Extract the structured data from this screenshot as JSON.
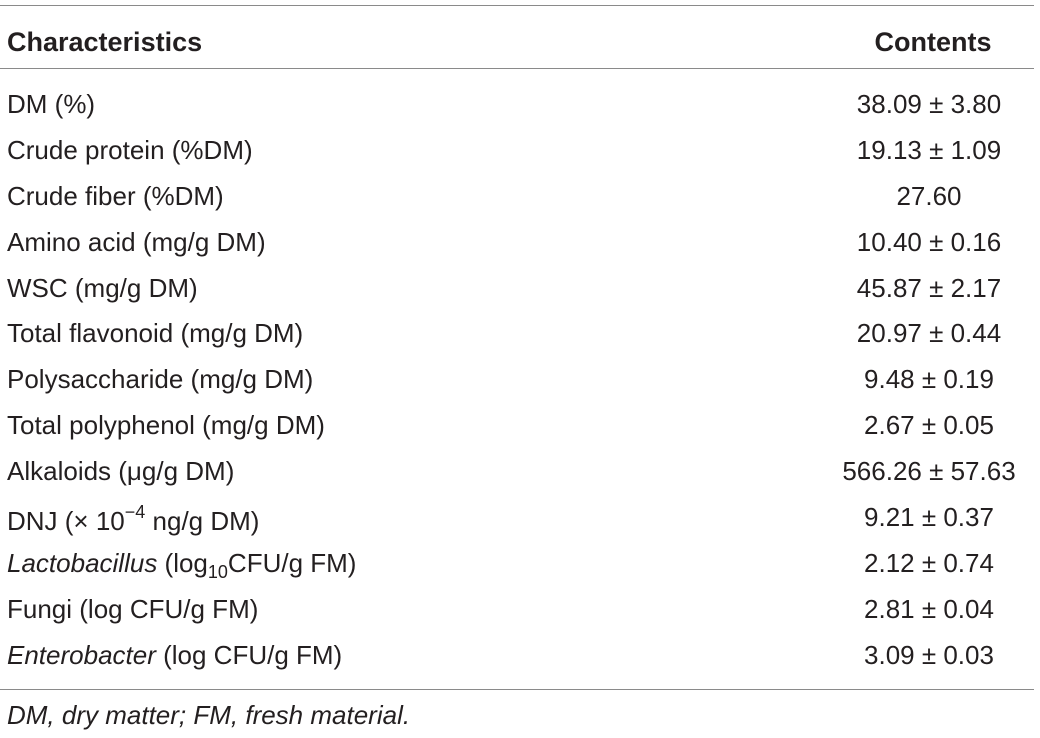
{
  "table": {
    "headers": {
      "characteristics": "Characteristics",
      "contents": "Contents"
    },
    "rows": [
      {
        "label": "DM (%)",
        "value": "38.09 ± 3.80"
      },
      {
        "label": "Crude protein (%DM)",
        "value": "19.13 ± 1.09"
      },
      {
        "label": "Crude fiber (%DM)",
        "value": "27.60"
      },
      {
        "label": "Amino acid (mg/g DM)",
        "value": "10.40 ± 0.16"
      },
      {
        "label": "WSC (mg/g DM)",
        "value": "45.87 ± 2.17"
      },
      {
        "label": "Total flavonoid (mg/g DM)",
        "value": "20.97 ± 0.44"
      },
      {
        "label": "Polysaccharide (mg/g DM)",
        "value": "9.48 ± 0.19"
      },
      {
        "label": "Total polyphenol (mg/g DM)",
        "value": "2.67 ± 0.05"
      },
      {
        "label": "Alkaloids (μg/g DM)",
        "value": "566.26 ± 57.63"
      },
      {
        "label_pre": "DNJ (× 10",
        "label_sup": "−4",
        "label_post": " ng/g DM)",
        "value": "9.21 ± 0.37"
      },
      {
        "label_it": "Lactobacillus",
        "label_pre": " (log",
        "label_sub": "10",
        "label_post": "CFU/g FM)",
        "value": "2.12 ± 0.74"
      },
      {
        "label": "Fungi (log CFU/g FM)",
        "value": "2.81 ± 0.04"
      },
      {
        "label_it": "Enterobacter",
        "label_post": " (log CFU/g FM)",
        "value": "3.09 ± 0.03"
      }
    ],
    "footnote": "DM, dry matter; FM, fresh material."
  }
}
